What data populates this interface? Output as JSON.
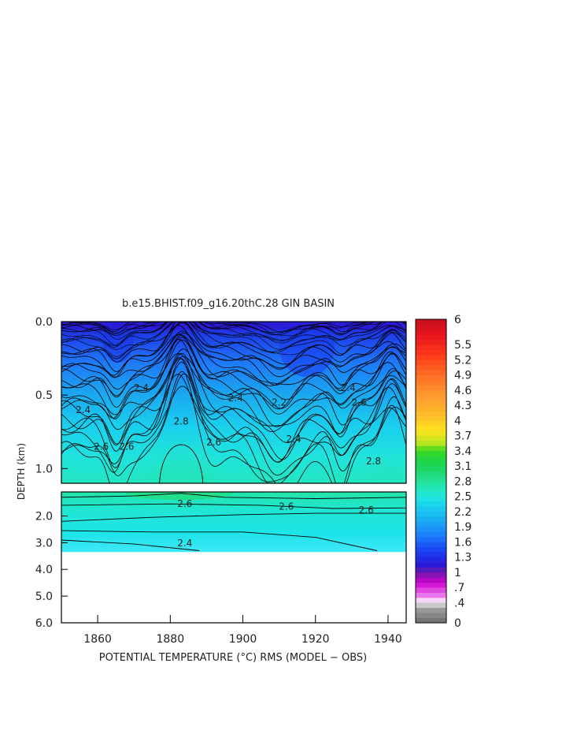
{
  "chart_data": {
    "type": "heatmap",
    "title": "b.e15.BHIST.f09_g16.20thC.28 GIN BASIN",
    "xlabel": "POTENTIAL TEMPERATURE (°C) RMS (MODEL − OBS)",
    "ylabel": "DEPTH (km)",
    "x_ticks": [
      "1860",
      "1880",
      "1900",
      "1920",
      "1940"
    ],
    "x_tick_values": [
      1860,
      1880,
      1900,
      1920,
      1940
    ],
    "xlim": [
      1850,
      1945
    ],
    "upper_panel": {
      "ylim": [
        0.0,
        1.1
      ],
      "y_ticks": [
        "0.0",
        "0.5",
        "1.0"
      ],
      "y_tick_values": [
        0.0,
        0.5,
        1.0
      ]
    },
    "lower_panel": {
      "ylim": [
        1.1,
        6.0
      ],
      "y_ticks": [
        "2.0",
        "3.0",
        "4.0",
        "5.0",
        "6.0"
      ],
      "y_tick_values": [
        2.0,
        3.0,
        4.0,
        5.0,
        6.0
      ],
      "data_max_depth": 3.35
    },
    "contour_labels": [
      {
        "text": "2.6",
        "x": 1861,
        "depth": 0.85
      },
      {
        "text": "2.6",
        "x": 1868,
        "depth": 0.85
      },
      {
        "text": "2.8",
        "x": 1883,
        "depth": 0.68
      },
      {
        "text": "2.6",
        "x": 1892,
        "depth": 0.82
      },
      {
        "text": "2.4",
        "x": 1872,
        "depth": 0.45
      },
      {
        "text": "2.4",
        "x": 1898,
        "depth": 0.52
      },
      {
        "text": "2.2",
        "x": 1910,
        "depth": 0.55
      },
      {
        "text": "2.4",
        "x": 1914,
        "depth": 0.8
      },
      {
        "text": "2.4",
        "x": 1856,
        "depth": 0.6
      },
      {
        "text": "2.6",
        "x": 1932,
        "depth": 0.55
      },
      {
        "text": "2.4",
        "x": 1929,
        "depth": 0.45
      },
      {
        "text": "2.8",
        "x": 1936,
        "depth": 0.95
      },
      {
        "text": "2.6",
        "x": 1884,
        "depth": 1.55
      },
      {
        "text": "2.6",
        "x": 1912,
        "depth": 1.65
      },
      {
        "text": "2.6",
        "x": 1934,
        "depth": 1.78
      },
      {
        "text": "2.4",
        "x": 1884,
        "depth": 3.02
      }
    ],
    "colorbar": {
      "labels": [
        "6",
        "5.5",
        "5.2",
        "4.9",
        "4.6",
        "4.3",
        "4",
        "3.7",
        "3.4",
        "3.1",
        "2.8",
        "2.5",
        "2.2",
        "1.9",
        "1.6",
        "1.3",
        "1",
        ".7",
        ".4",
        "0"
      ],
      "label_values": [
        6,
        5.5,
        5.2,
        4.9,
        4.6,
        4.3,
        4,
        3.7,
        3.4,
        3.1,
        2.8,
        2.5,
        2.2,
        1.9,
        1.6,
        1.3,
        1,
        0.7,
        0.4,
        0
      ],
      "stops": [
        {
          "v": 0.0,
          "c": "#6e6e6e"
        },
        {
          "v": 0.3,
          "c": "#a0a0a0"
        },
        {
          "v": 0.42,
          "c": "#ffffff"
        },
        {
          "v": 0.5,
          "c": "#f08cf0"
        },
        {
          "v": 0.8,
          "c": "#d000d0"
        },
        {
          "v": 1.0,
          "c": "#6a1aa8"
        },
        {
          "v": 1.15,
          "c": "#2a1ad8"
        },
        {
          "v": 1.4,
          "c": "#1a3cf0"
        },
        {
          "v": 1.7,
          "c": "#1e78ff"
        },
        {
          "v": 2.0,
          "c": "#1aa8f4"
        },
        {
          "v": 2.3,
          "c": "#1ad0f0"
        },
        {
          "v": 2.5,
          "c": "#20e8e0"
        },
        {
          "v": 2.7,
          "c": "#22e6b0"
        },
        {
          "v": 2.9,
          "c": "#20dc80"
        },
        {
          "v": 3.2,
          "c": "#1cd448"
        },
        {
          "v": 3.4,
          "c": "#38d820"
        },
        {
          "v": 3.55,
          "c": "#b4e61e"
        },
        {
          "v": 3.8,
          "c": "#ffe41e"
        },
        {
          "v": 4.1,
          "c": "#ffbe28"
        },
        {
          "v": 4.5,
          "c": "#ff9a30"
        },
        {
          "v": 4.9,
          "c": "#ff6e24"
        },
        {
          "v": 5.3,
          "c": "#ff3a1a"
        },
        {
          "v": 5.7,
          "c": "#e8141e"
        },
        {
          "v": 6.0,
          "c": "#c8101e"
        }
      ]
    },
    "grid": false
  }
}
